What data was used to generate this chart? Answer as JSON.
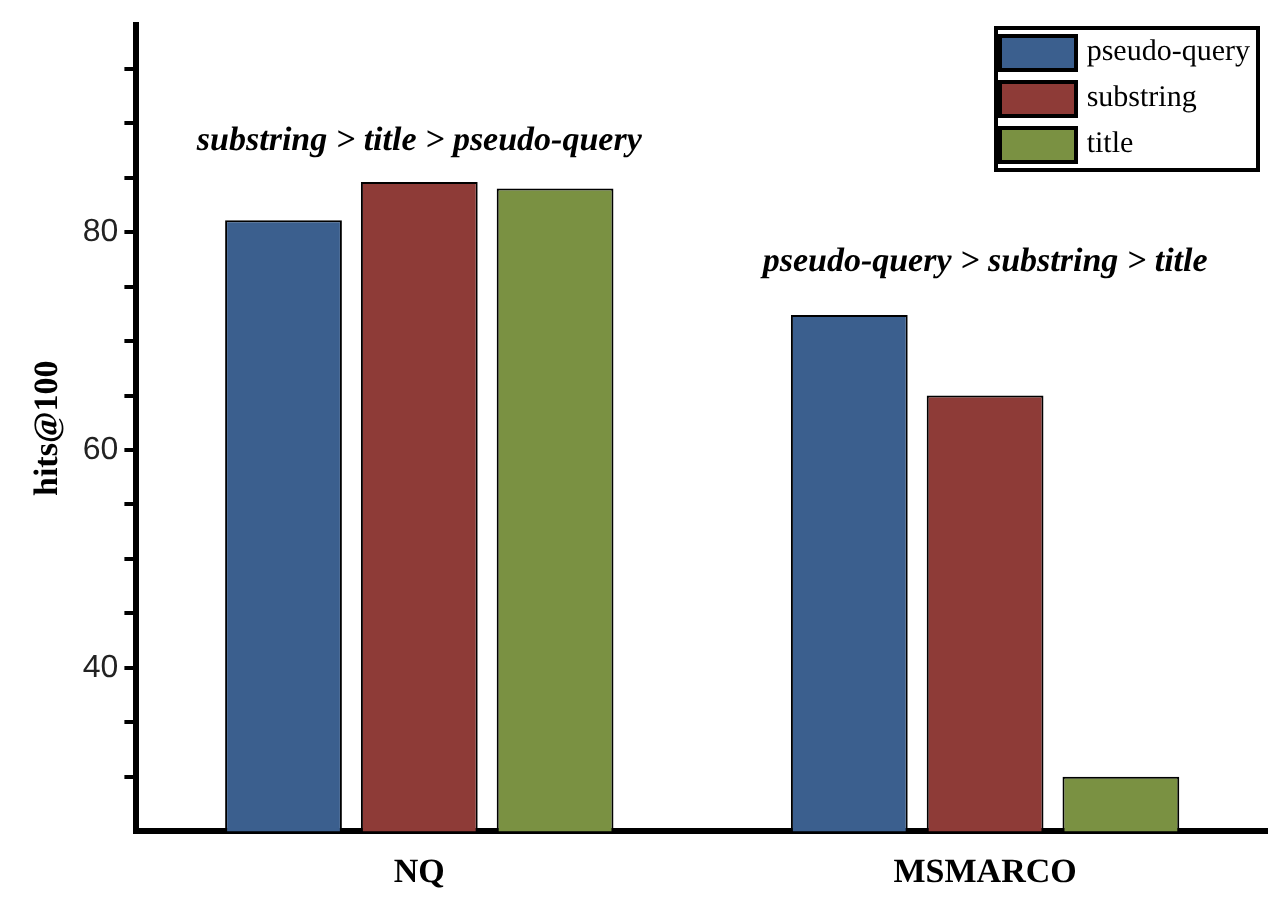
{
  "chart_data": {
    "type": "bar",
    "ylabel": "hits@100",
    "categories": [
      "NQ",
      "MSMARCO"
    ],
    "series": [
      {
        "name": "pseudo-query",
        "color": "#3b5f8e",
        "values": [
          81.1,
          72.4
        ]
      },
      {
        "name": "substring",
        "color": "#8e3b37",
        "values": [
          84.6,
          65
        ]
      },
      {
        "name": "title",
        "color": "#7a9142",
        "values": [
          84,
          30
        ]
      }
    ],
    "ylim": [
      25,
      99
    ],
    "yticks": [
      {
        "value": 30,
        "label": null
      },
      {
        "value": 35,
        "label": null
      },
      40,
      {
        "value": 45,
        "label": null
      },
      {
        "value": 50,
        "label": null
      },
      {
        "value": 55,
        "label": null
      },
      60,
      {
        "value": 65,
        "label": null
      },
      {
        "value": 70,
        "label": null
      },
      {
        "value": 75,
        "label": null
      },
      80,
      {
        "value": 85,
        "label": null
      },
      {
        "value": 90,
        "label": null
      },
      {
        "value": 95,
        "label": null
      }
    ],
    "annotations": [
      "substring > title > pseudo-query",
      "pseudo-query > substring > title"
    ],
    "grid": false,
    "legend": "top right"
  }
}
